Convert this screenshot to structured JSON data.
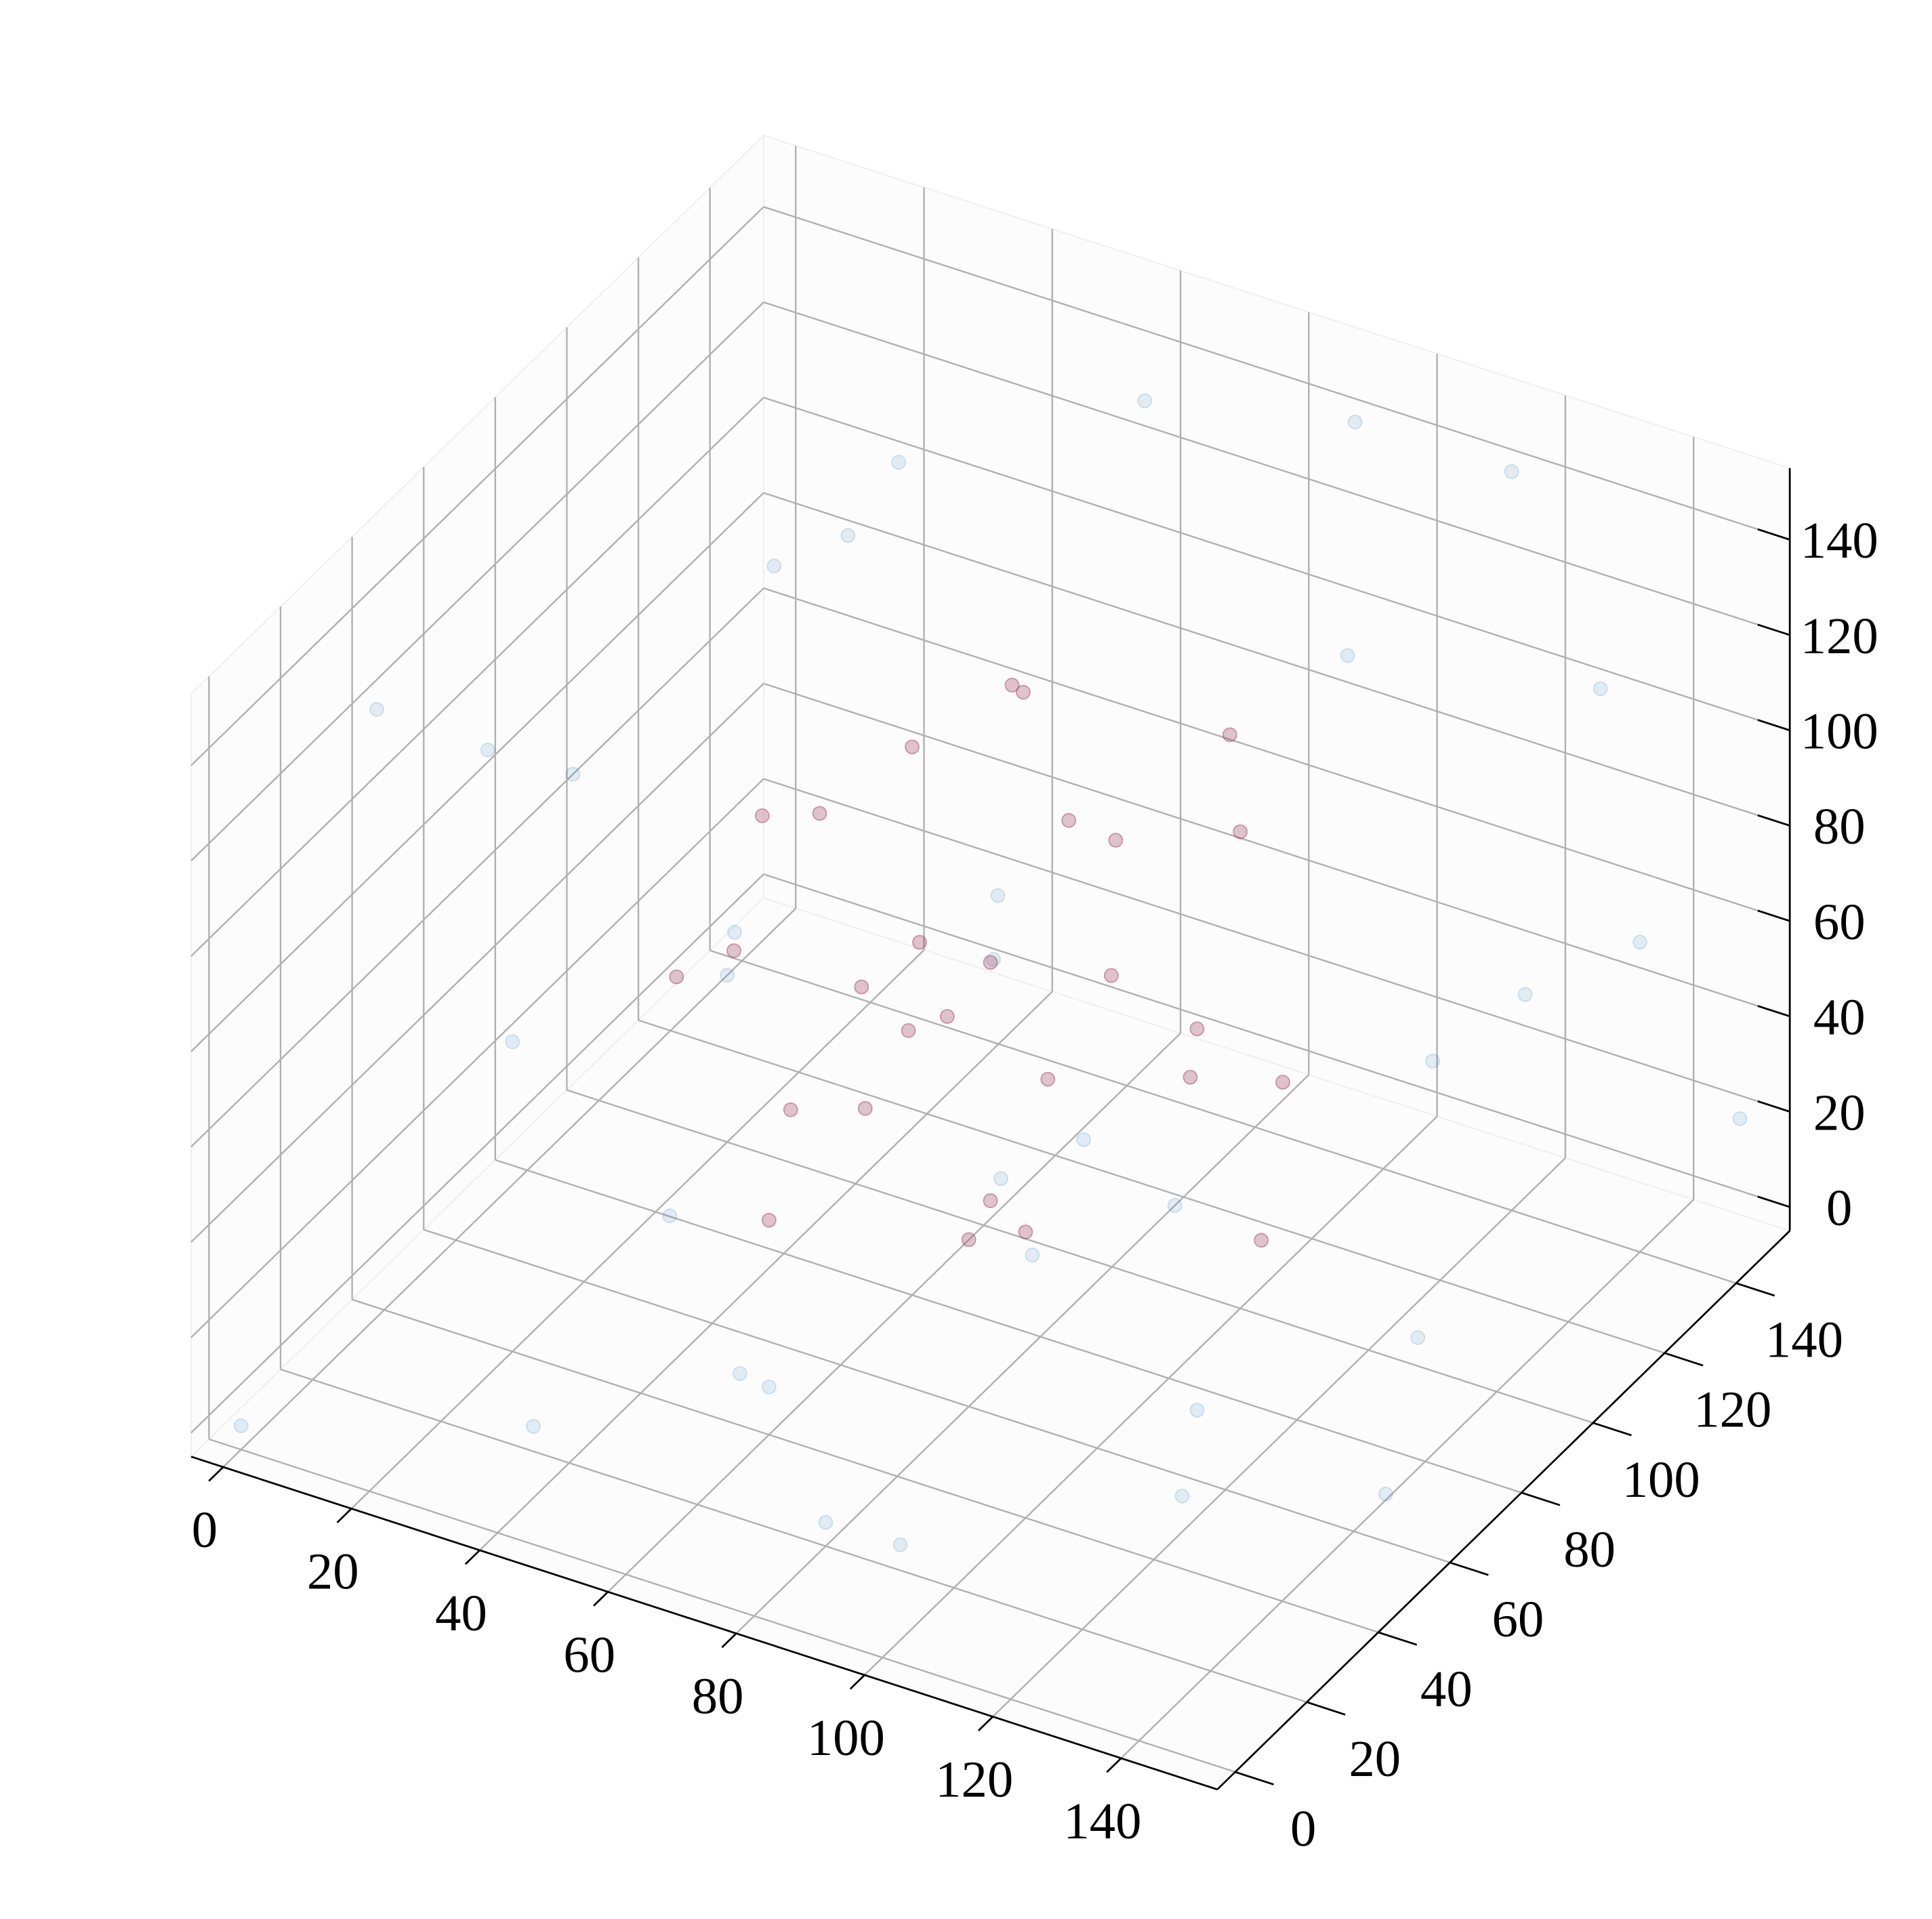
{
  "chart_data": {
    "type": "scatter3d",
    "xlim": [
      -5,
      155
    ],
    "ylim": [
      -5,
      155
    ],
    "zlim": [
      -5,
      155
    ],
    "xticks": [
      0,
      20,
      40,
      60,
      80,
      100,
      120,
      140
    ],
    "yticks": [
      0,
      20,
      40,
      60,
      80,
      100,
      120,
      140
    ],
    "zticks": [
      0,
      20,
      40,
      60,
      80,
      100,
      120,
      140
    ],
    "grid": true,
    "series": [
      {
        "color": "#1f77b4",
        "alpha": 0.12,
        "x": [
          10,
          30,
          5,
          20,
          40,
          60,
          80,
          100,
          130,
          150,
          145,
          120,
          90,
          60,
          140,
          150,
          110,
          70,
          20,
          5,
          130,
          100,
          50,
          85,
          65,
          150,
          0,
          25,
          140,
          95,
          35,
          115,
          10,
          75,
          145
        ],
        "y": [
          20,
          130,
          60,
          100,
          10,
          40,
          20,
          5,
          30,
          60,
          120,
          140,
          150,
          145,
          10,
          90,
          70,
          110,
          40,
          140,
          100,
          130,
          80,
          60,
          95,
          150,
          0,
          75,
          140,
          40,
          30,
          15,
          120,
          5,
          60
        ],
        "z": [
          140,
          120,
          100,
          30,
          10,
          5,
          0,
          15,
          20,
          40,
          130,
          150,
          140,
          135,
          100,
          90,
          0,
          10,
          60,
          80,
          60,
          110,
          150,
          45,
          70,
          20,
          0,
          0,
          60,
          110,
          130,
          75,
          20,
          40,
          5
        ]
      },
      {
        "color": "#9b3b5a",
        "alpha": 0.3,
        "x": [
          75,
          60,
          90,
          40,
          110,
          75,
          75,
          55,
          95,
          80,
          70,
          45,
          105,
          100,
          50,
          85,
          65,
          115,
          35,
          75,
          90,
          60,
          100,
          70,
          120,
          55,
          80,
          40
        ],
        "y": [
          75,
          80,
          70,
          90,
          70,
          40,
          110,
          55,
          95,
          60,
          90,
          65,
          55,
          100,
          100,
          45,
          70,
          85,
          75,
          75,
          115,
          40,
          40,
          100,
          70,
          120,
          30,
          50
        ],
        "z": [
          75,
          110,
          115,
          80,
          80,
          70,
          75,
          50,
          45,
          30,
          120,
          100,
          100,
          95,
          50,
          90,
          60,
          60,
          60,
          25,
          100,
          40,
          55,
          30,
          40,
          90,
          105,
          75
        ]
      }
    ]
  }
}
